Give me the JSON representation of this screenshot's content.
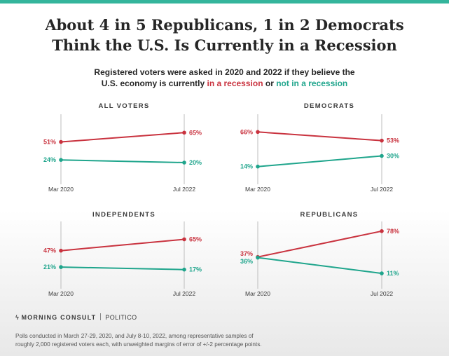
{
  "title_line1": "About 4 in 5 Republicans, 1 in 2 Democrats",
  "title_line2": "Think the U.S. Is Currently in a Recession",
  "subtitle_line1": "Registered voters were asked in 2020 and 2022 if they believe the",
  "subtitle_line2_a": "U.S. economy is currently ",
  "subtitle_line2_recession": "in a recession",
  "subtitle_line2_or": " or ",
  "subtitle_line2_not": "not in a recession",
  "colors": {
    "recession": "#c9333f",
    "not_recession": "#1fa58c",
    "accent_bar": "#34b59c"
  },
  "chart_data": [
    {
      "type": "line",
      "title": "ALL VOTERS",
      "categories": [
        "Mar 2020",
        "Jul 2022"
      ],
      "series": [
        {
          "name": "in a recession",
          "values": [
            51,
            65
          ],
          "labels": [
            "51%",
            "65%"
          ]
        },
        {
          "name": "not in a recession",
          "values": [
            24,
            20
          ],
          "labels": [
            "24%",
            "20%"
          ]
        }
      ]
    },
    {
      "type": "line",
      "title": "DEMOCRATS",
      "categories": [
        "Mar 2020",
        "Jul 2022"
      ],
      "series": [
        {
          "name": "in a recession",
          "values": [
            66,
            53
          ],
          "labels": [
            "66%",
            "53%"
          ]
        },
        {
          "name": "not in a recession",
          "values": [
            14,
            30
          ],
          "labels": [
            "14%",
            "30%"
          ]
        }
      ]
    },
    {
      "type": "line",
      "title": "INDEPENDENTS",
      "categories": [
        "Mar 2020",
        "Jul 2022"
      ],
      "series": [
        {
          "name": "in a recession",
          "values": [
            47,
            65
          ],
          "labels": [
            "47%",
            "65%"
          ]
        },
        {
          "name": "not in a recession",
          "values": [
            21,
            17
          ],
          "labels": [
            "21%",
            "17%"
          ]
        }
      ]
    },
    {
      "type": "line",
      "title": "REPUBLICANS",
      "categories": [
        "Mar 2020",
        "Jul 2022"
      ],
      "series": [
        {
          "name": "in a recession",
          "values": [
            37,
            78
          ],
          "labels": [
            "37%",
            "78%"
          ]
        },
        {
          "name": "not in a recession",
          "values": [
            36,
            11
          ],
          "labels": [
            "36%",
            "11%"
          ]
        }
      ]
    }
  ],
  "footer": {
    "brand": "MORNING CONSULT",
    "partner": "POLITICO",
    "note_line1": "Polls conducted in March 27-29, 2020, and July 8-10, 2022, among representative samples of",
    "note_line2": "roughly 2,000 registered voters each, with unweighted margins of error of +/-2 percentage points."
  }
}
